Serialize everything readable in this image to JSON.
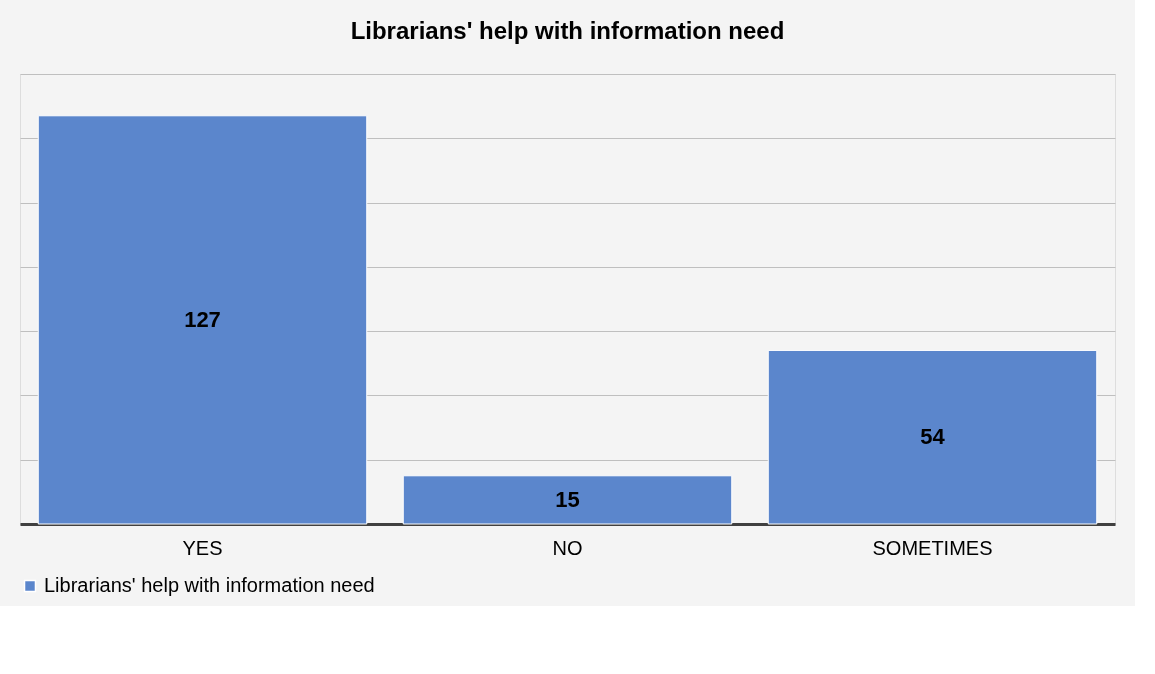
{
  "chart_data": {
    "type": "bar",
    "title": "Librarians' help with information need",
    "categories": [
      "YES",
      "NO",
      "SOMETIMES"
    ],
    "series": [
      {
        "name": "Librarians' help with information need",
        "color": "#5b86cc",
        "values": [
          127,
          15,
          54
        ]
      }
    ],
    "ylim": [
      0,
      140
    ],
    "yticks": [
      {
        "value": 0,
        "label": null
      },
      {
        "value": 20,
        "label": null
      },
      {
        "value": 40,
        "label": null
      },
      {
        "value": 60,
        "label": null
      },
      {
        "value": 80,
        "label": null
      },
      {
        "value": 100,
        "label": null
      },
      {
        "value": 120,
        "label": null
      },
      {
        "value": 140,
        "label": null
      }
    ],
    "grid": "y",
    "legend": "bottom",
    "data_labels": true
  }
}
